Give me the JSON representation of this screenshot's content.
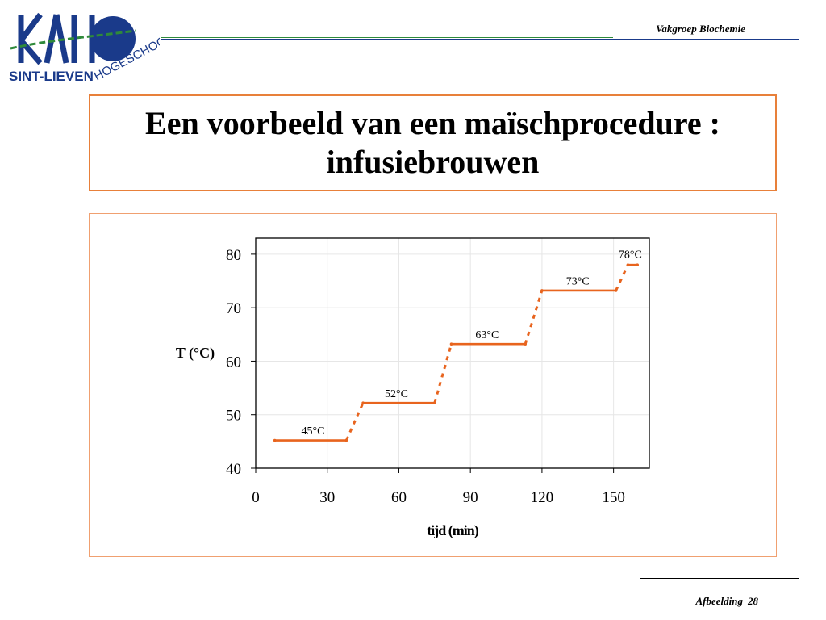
{
  "header": {
    "logo_text": "KAHO",
    "logo_subtitle": "SINT-LIEVEN",
    "logo_subtitle2": "HOGESCHOOL",
    "department": "Vakgroep Biochemie"
  },
  "slide": {
    "title_line1": "Een voorbeeld van een maïschprocedure :",
    "title_line2": "infusiebrouwen"
  },
  "footer": {
    "label": "Afbeelding",
    "number": "28"
  },
  "colors": {
    "accent": "#e8803a",
    "line": "#e8641e",
    "logo_blue": "#1a3a8a",
    "logo_green": "#2f8a3a"
  },
  "chart_data": {
    "type": "line",
    "xlabel": "tijd (min)",
    "ylabel": "T (°C)",
    "xlim": [
      0,
      165
    ],
    "ylim": [
      40,
      83
    ],
    "xticks": [
      0,
      30,
      60,
      90,
      120,
      150
    ],
    "yticks": [
      40,
      50,
      60,
      70,
      80
    ],
    "grid": true,
    "series": [
      {
        "style": "solid",
        "values": [
          [
            8,
            45.2
          ],
          [
            38,
            45.2
          ]
        ]
      },
      {
        "style": "dotted",
        "values": [
          [
            38,
            45.2
          ],
          [
            45,
            52.2
          ]
        ]
      },
      {
        "style": "solid",
        "values": [
          [
            45,
            52.2
          ],
          [
            75,
            52.2
          ]
        ]
      },
      {
        "style": "dotted",
        "values": [
          [
            75,
            52.2
          ],
          [
            82,
            63.2
          ]
        ]
      },
      {
        "style": "solid",
        "values": [
          [
            82,
            63.2
          ],
          [
            113,
            63.2
          ]
        ]
      },
      {
        "style": "dotted",
        "values": [
          [
            113,
            63.2
          ],
          [
            120,
            73.2
          ]
        ]
      },
      {
        "style": "solid",
        "values": [
          [
            120,
            73.2
          ],
          [
            151,
            73.2
          ]
        ]
      },
      {
        "style": "dotted",
        "values": [
          [
            151,
            73.2
          ],
          [
            156,
            78
          ]
        ]
      },
      {
        "style": "solid",
        "values": [
          [
            156,
            78
          ],
          [
            160,
            78
          ]
        ]
      }
    ],
    "annotations": [
      {
        "text": "45°C",
        "x": 24,
        "y": 46.3
      },
      {
        "text": "52°C",
        "x": 59,
        "y": 53.3
      },
      {
        "text": "63°C",
        "x": 97,
        "y": 64.3
      },
      {
        "text": "73°C",
        "x": 135,
        "y": 74.3
      },
      {
        "text": "78°C",
        "x": 157,
        "y": 79.3
      }
    ]
  }
}
